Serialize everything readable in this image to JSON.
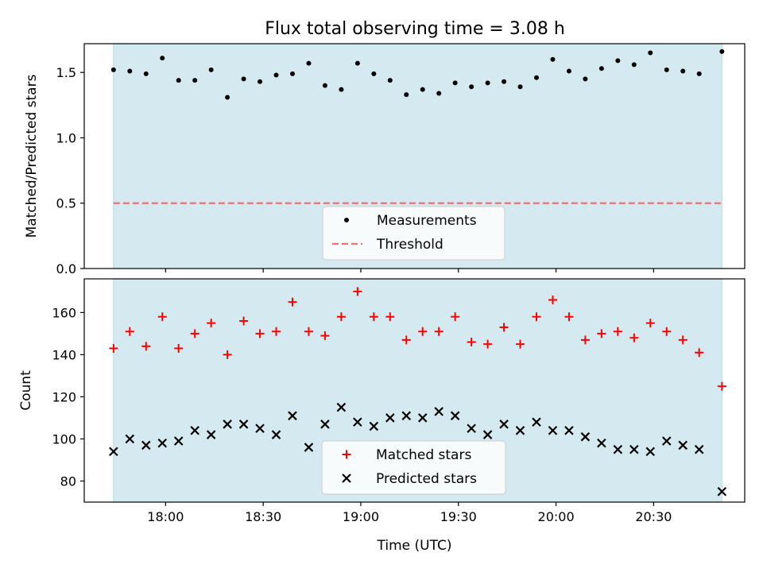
{
  "chart_data": [
    {
      "type": "scatter",
      "title": "Flux total observing time = 3.08 h",
      "ylabel": "Matched/Predicted stars",
      "xlabel": "",
      "ylim": [
        0,
        1.72
      ],
      "yticks": [
        "0.0",
        "0.5",
        "1.0",
        "1.5"
      ],
      "ytick_values": [
        0,
        0.5,
        1.0,
        1.5
      ],
      "shaded_region": {
        "x_start": "17:44",
        "x_end": "20:51",
        "color": "#d4eaf0"
      },
      "threshold": {
        "name": "Threshold",
        "value": 0.5,
        "color": "#f07070"
      },
      "legend": {
        "placement": "lower-center",
        "entries": [
          "Measurements",
          "Threshold"
        ]
      },
      "series": [
        {
          "name": "Measurements",
          "marker": "dot",
          "color": "#000000",
          "x": [
            "17:44",
            "17:49",
            "17:54",
            "17:59",
            "18:04",
            "18:09",
            "18:14",
            "18:19",
            "18:24",
            "18:29",
            "18:34",
            "18:39",
            "18:44",
            "18:49",
            "18:54",
            "18:59",
            "19:04",
            "19:09",
            "19:14",
            "19:19",
            "19:24",
            "19:29",
            "19:34",
            "19:39",
            "19:44",
            "19:49",
            "19:54",
            "19:59",
            "20:04",
            "20:09",
            "20:14",
            "20:19",
            "20:24",
            "20:29",
            "20:34",
            "20:39",
            "20:44",
            "20:51"
          ],
          "y": [
            1.52,
            1.51,
            1.49,
            1.61,
            1.44,
            1.44,
            1.52,
            1.31,
            1.45,
            1.43,
            1.48,
            1.49,
            1.57,
            1.4,
            1.37,
            1.57,
            1.49,
            1.44,
            1.33,
            1.37,
            1.34,
            1.42,
            1.39,
            1.42,
            1.43,
            1.39,
            1.46,
            1.6,
            1.51,
            1.45,
            1.53,
            1.59,
            1.56,
            1.65,
            1.52,
            1.51,
            1.49,
            1.66
          ]
        }
      ]
    },
    {
      "type": "scatter",
      "title": "",
      "ylabel": "Count",
      "xlabel": "Time (UTC)",
      "ylim": [
        70,
        176
      ],
      "yticks": [
        "80",
        "100",
        "120",
        "140",
        "160"
      ],
      "ytick_values": [
        80,
        100,
        120,
        140,
        160
      ],
      "xticks": [
        "18:00",
        "18:30",
        "19:00",
        "19:30",
        "20:00",
        "20:30"
      ],
      "xtick_values": [
        "18:00",
        "18:30",
        "19:00",
        "19:30",
        "20:00",
        "20:30"
      ],
      "xlim": [
        "17:35",
        "20:58"
      ],
      "shaded_region": {
        "x_start": "17:44",
        "x_end": "20:51",
        "color": "#d4eaf0"
      },
      "legend": {
        "placement": "lower-center",
        "entries": [
          "Matched stars",
          "Predicted stars"
        ]
      },
      "series": [
        {
          "name": "Matched stars",
          "marker": "plus",
          "color": "#ff0000",
          "x": [
            "17:44",
            "17:49",
            "17:54",
            "17:59",
            "18:04",
            "18:09",
            "18:14",
            "18:19",
            "18:24",
            "18:29",
            "18:34",
            "18:39",
            "18:44",
            "18:49",
            "18:54",
            "18:59",
            "19:04",
            "19:09",
            "19:14",
            "19:19",
            "19:24",
            "19:29",
            "19:34",
            "19:39",
            "19:44",
            "19:49",
            "19:54",
            "19:59",
            "20:04",
            "20:09",
            "20:14",
            "20:19",
            "20:24",
            "20:29",
            "20:34",
            "20:39",
            "20:44",
            "20:51"
          ],
          "y": [
            143,
            151,
            144,
            158,
            143,
            150,
            155,
            140,
            156,
            150,
            151,
            165,
            151,
            149,
            158,
            170,
            158,
            158,
            147,
            151,
            151,
            158,
            146,
            145,
            153,
            145,
            158,
            166,
            158,
            147,
            150,
            151,
            148,
            155,
            151,
            147,
            141,
            125
          ]
        },
        {
          "name": "Predicted stars",
          "marker": "x",
          "color": "#000000",
          "x": [
            "17:44",
            "17:49",
            "17:54",
            "17:59",
            "18:04",
            "18:09",
            "18:14",
            "18:19",
            "18:24",
            "18:29",
            "18:34",
            "18:39",
            "18:44",
            "18:49",
            "18:54",
            "18:59",
            "19:04",
            "19:09",
            "19:14",
            "19:19",
            "19:24",
            "19:29",
            "19:34",
            "19:39",
            "19:44",
            "19:49",
            "19:54",
            "19:59",
            "20:04",
            "20:09",
            "20:14",
            "20:19",
            "20:24",
            "20:29",
            "20:34",
            "20:39",
            "20:44",
            "20:51"
          ],
          "y": [
            94,
            100,
            97,
            98,
            99,
            104,
            102,
            107,
            107,
            105,
            102,
            111,
            96,
            107,
            115,
            108,
            106,
            110,
            111,
            110,
            113,
            111,
            105,
            102,
            107,
            104,
            108,
            104,
            104,
            101,
            98,
            95,
            95,
            94,
            99,
            97,
            95,
            75
          ]
        }
      ]
    }
  ]
}
